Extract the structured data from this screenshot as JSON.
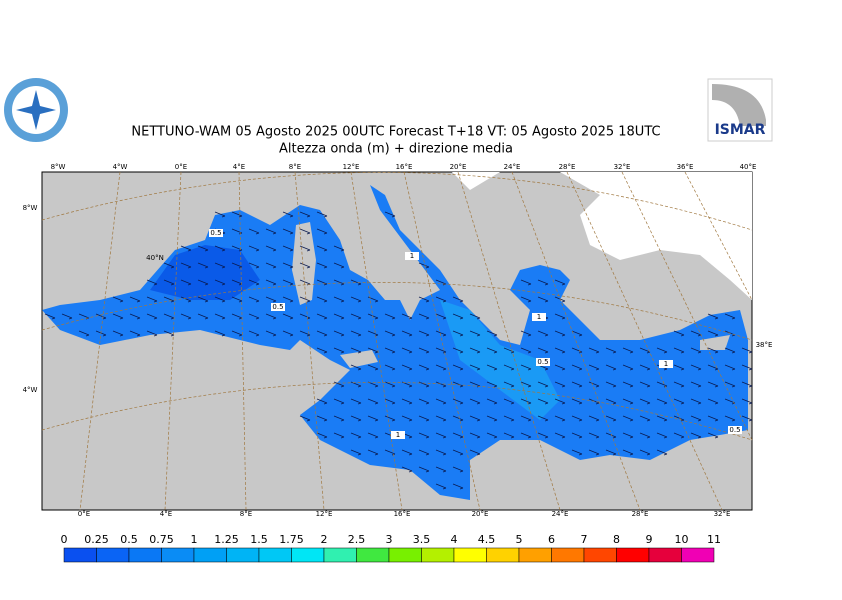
{
  "header": {
    "title": "NETTUNO-WAM  05   Agosto  2025 00UTC Forecast T+18 VT: 05   Agosto  2025 18UTC",
    "subtitle": "Altezza onda (m) + direzione media",
    "logo_right": "ISMAR"
  },
  "map": {
    "top_labels": [
      "8°W",
      "4°W",
      "0°E",
      "4°E",
      "8°E",
      "12°E",
      "16°E",
      "20°E",
      "24°E",
      "28°E",
      "32°E",
      "36°E",
      "40°E"
    ],
    "bottom_labels": [
      "0°E",
      "4°E",
      "8°E",
      "12°E",
      "16°E",
      "20°E",
      "24°E",
      "28°E",
      "32°E"
    ],
    "left_labels": [
      "8°W",
      "40°N",
      "4°W"
    ],
    "right_labels": [
      "38°E"
    ],
    "contour_labels": [
      "0.5",
      "0.5",
      "1",
      "1",
      "0.5",
      "1",
      "1",
      "0.5"
    ]
  },
  "colorbar": {
    "labels": [
      "0",
      "0.25",
      "0.5",
      "0.75",
      "1",
      "1.25",
      "1.5",
      "1.75",
      "2",
      "2.5",
      "3",
      "3.5",
      "4",
      "4.5",
      "5",
      "6",
      "7",
      "8",
      "9",
      "10",
      "11"
    ],
    "colors": [
      "#0a50f0",
      "#0a64f5",
      "#0a78f5",
      "#0a8cf5",
      "#00a0f5",
      "#00b4f5",
      "#00c8f5",
      "#00e6f5",
      "#30f0b0",
      "#40e840",
      "#78f000",
      "#b4f000",
      "#ffff00",
      "#ffd200",
      "#ffa000",
      "#ff7800",
      "#ff4600",
      "#ff0000",
      "#e6003c",
      "#f000b4"
    ]
  }
}
